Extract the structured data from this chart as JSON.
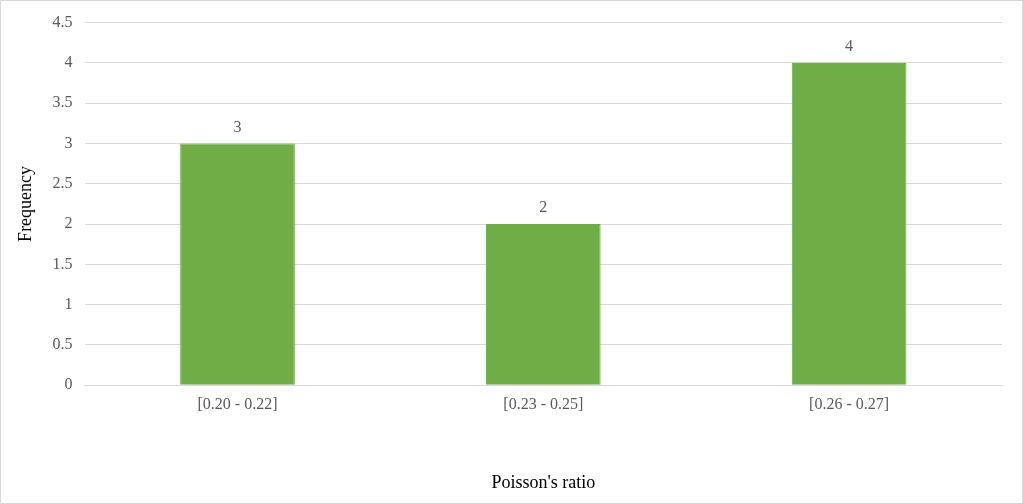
{
  "chart_data": {
    "type": "bar",
    "xlabel": "Poisson's ratio",
    "ylabel": "Frequency",
    "categories": [
      "[0.20 - 0.22]",
      "[0.23 - 0.25]",
      "[0.26 - 0.27]"
    ],
    "values": [
      3,
      2,
      4
    ],
    "color": "#70ad47",
    "ylim": [
      0,
      4.5
    ],
    "yticks": [
      0,
      0.5,
      1,
      1.5,
      2,
      2.5,
      3,
      3.5,
      4,
      4.5
    ],
    "grid": "y",
    "data_labels": true,
    "legend": false
  }
}
